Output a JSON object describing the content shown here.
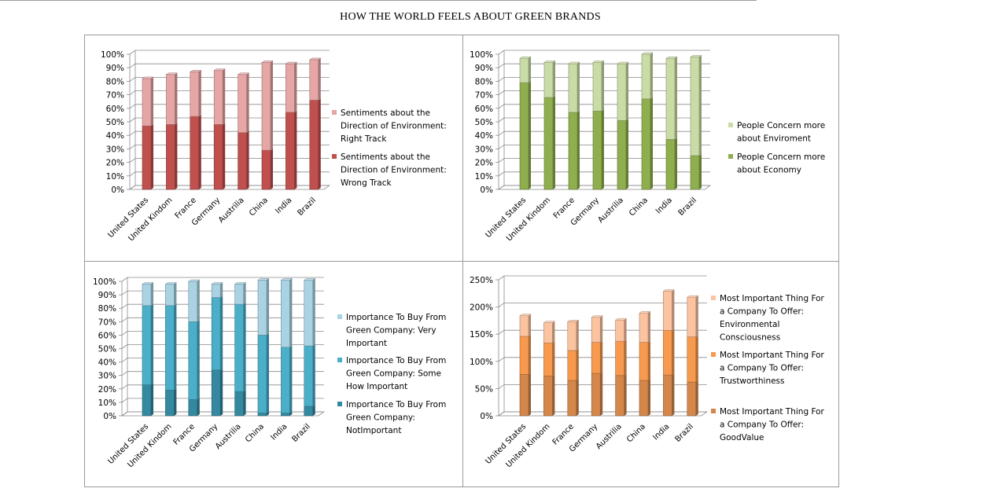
{
  "title": "HOW THE WORLD FEELS ABOUT GREEN BRANDS",
  "chart_data": [
    {
      "type": "bar",
      "stacked": true,
      "categories": [
        "United States",
        "United Kindom",
        "France",
        "Germany",
        "Austrilia",
        "China",
        "India",
        "Brazil"
      ],
      "ylim": [
        0,
        100
      ],
      "yticks": [
        "0%",
        "10%",
        "20%",
        "30%",
        "40%",
        "50%",
        "60%",
        "70%",
        "80%",
        "90%",
        "100%"
      ],
      "legend_position": "right",
      "series": [
        {
          "name": "Sentiments about the Direction of Environment: Wrong Track",
          "color": "#c0504d",
          "values": [
            47,
            48,
            54,
            48,
            42,
            29,
            57,
            66
          ]
        },
        {
          "name": "Sentiments about the Direction of Environment: Right Track",
          "color": "#e6a6a5",
          "values": [
            35,
            37,
            33,
            40,
            43,
            65,
            36,
            30
          ]
        }
      ]
    },
    {
      "type": "bar",
      "stacked": true,
      "categories": [
        "United States",
        "United Kindom",
        "France",
        "Germany",
        "Austrilia",
        "China",
        "India",
        "Brazil"
      ],
      "ylim": [
        0,
        100
      ],
      "yticks": [
        "0%",
        "10%",
        "20%",
        "30%",
        "40%",
        "50%",
        "60%",
        "70%",
        "80%",
        "90%",
        "100%"
      ],
      "legend_position": "right",
      "series": [
        {
          "name": "People Concern more about Economy",
          "color": "#8faf4f",
          "values": [
            79,
            68,
            57,
            58,
            51,
            67,
            37,
            25
          ]
        },
        {
          "name": "People Concern more about Enviroment",
          "color": "#c9dca6",
          "values": [
            18,
            26,
            36,
            36,
            42,
            33,
            60,
            73
          ]
        }
      ]
    },
    {
      "type": "bar",
      "stacked": true,
      "categories": [
        "United States",
        "United Kindom",
        "France",
        "Germany",
        "Austrilia",
        "China",
        "India",
        "Brazil"
      ],
      "ylim": [
        0,
        100
      ],
      "yticks": [
        "0%",
        "10%",
        "20%",
        "30%",
        "40%",
        "50%",
        "60%",
        "70%",
        "80%",
        "90%",
        "100%"
      ],
      "legend_position": "right",
      "series": [
        {
          "name": "Importance To Buy From Green Company: NotImportant",
          "color": "#3489a0",
          "values": [
            23,
            19,
            12,
            34,
            18,
            2,
            2,
            7
          ]
        },
        {
          "name": "Importance To Buy From Green Company: Some How Important",
          "color": "#4bafc9",
          "values": [
            59,
            63,
            58,
            54,
            65,
            58,
            49,
            45
          ]
        },
        {
          "name": "Importance To Buy From Green Company: Very Important",
          "color": "#a9d3e3",
          "values": [
            16,
            16,
            30,
            10,
            15,
            41,
            50,
            49
          ]
        }
      ]
    },
    {
      "type": "bar",
      "stacked": true,
      "categories": [
        "United States",
        "United Kindom",
        "France",
        "Germany",
        "Austrilia",
        "China",
        "India",
        "Brazil"
      ],
      "ylim": [
        0,
        250
      ],
      "yticks": [
        "0%",
        "50%",
        "100%",
        "150%",
        "200%",
        "250%"
      ],
      "legend_position": "right",
      "series": [
        {
          "name": "Most Important Thing For a Company To Offer: GoodValue",
          "color": "#d4874b",
          "values": [
            76,
            73,
            65,
            78,
            74,
            65,
            75,
            62
          ]
        },
        {
          "name": "Most Important Thing For a Company To Offer: Trustworthiness",
          "color": "#f79a4f",
          "values": [
            70,
            61,
            55,
            57,
            63,
            70,
            82,
            83
          ]
        },
        {
          "name": "Most Important Thing For a Company To Offer: Environmental Consciousness",
          "color": "#fbc3a0",
          "values": [
            38,
            37,
            53,
            46,
            39,
            54,
            72,
            73
          ]
        }
      ]
    }
  ],
  "legends": [
    [
      [
        "Sentiments about the",
        "Direction of Environment:",
        "Right Track"
      ],
      [
        "Sentiments about the",
        "Direction of Environment:",
        "Wrong Track"
      ]
    ],
    [
      [
        "People Concern more",
        "about Enviroment"
      ],
      [
        "People Concern more",
        "about Economy"
      ]
    ],
    [
      [
        "Importance To Buy From",
        "Green Company: Very",
        "Important"
      ],
      [
        "Importance To Buy From",
        "Green Company: Some",
        "How Important"
      ],
      [
        "Importance To Buy From",
        "Green Company:",
        "NotImportant"
      ]
    ],
    [
      [
        "Most Important Thing For",
        "a Company To Offer:",
        "Environmental",
        "Consciousness"
      ],
      [
        "Most Important Thing For",
        "a Company To Offer:",
        "Trustworthiness"
      ],
      [
        "Most Important Thing For",
        "a Company To Offer:",
        "GoodValue"
      ]
    ]
  ]
}
